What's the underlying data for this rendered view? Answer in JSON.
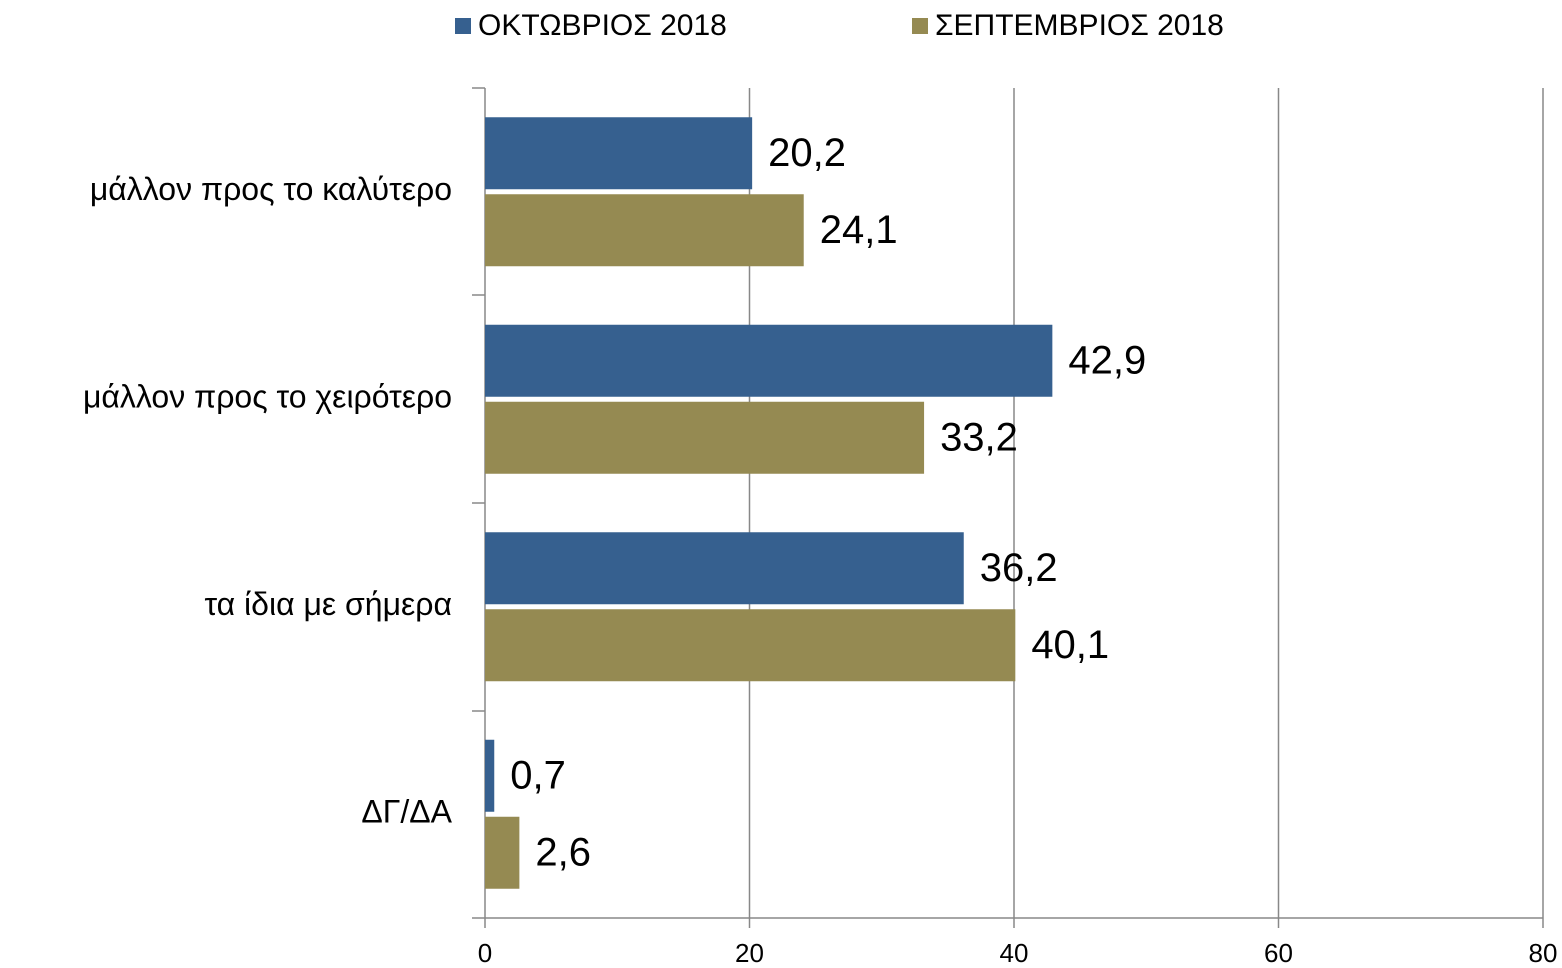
{
  "chart_data": {
    "type": "hbar",
    "categories": [
      "μάλλον προς το καλύτερο",
      "μάλλον προς το χειρότερο",
      "τα ίδια με σήμερα",
      "ΔΓ/ΔΑ"
    ],
    "series": [
      {
        "name": "ΟΚΤΩΒΡΙΟΣ 2018",
        "color": "#36608f",
        "values": [
          20.2,
          42.9,
          36.2,
          0.7
        ],
        "value_labels": [
          "20,2",
          "42,9",
          "36,2",
          "0,7"
        ]
      },
      {
        "name": "ΣΕΠΤΕΜΒΡΙΟΣ 2018",
        "color": "#958a52",
        "values": [
          24.1,
          33.2,
          40.1,
          2.6
        ],
        "value_labels": [
          "24,1",
          "33,2",
          "40,1",
          "2,6"
        ]
      }
    ],
    "xlim": [
      0,
      80
    ],
    "xticks": [
      0,
      20,
      40,
      60,
      80
    ],
    "grid": true,
    "legend": "top"
  }
}
